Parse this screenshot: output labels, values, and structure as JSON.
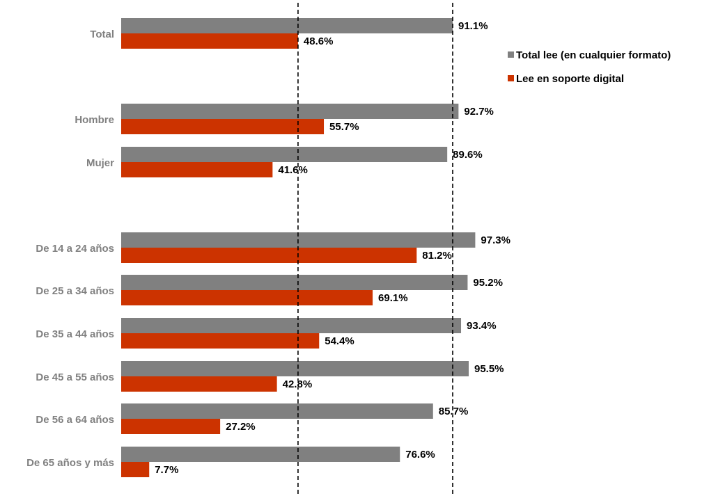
{
  "chart_data": {
    "type": "bar",
    "orientation": "horizontal",
    "categories": [
      "Total",
      "Hombre",
      "Mujer",
      "De 14 a 24 años",
      "De 25 a 34 años",
      "De 35 a 44 años",
      "De 45 a 55 años",
      "De 56 a 64 años",
      "De 65 años y más"
    ],
    "series": [
      {
        "name": "Total lee (en cualquier formato)",
        "color": "#808080",
        "values": [
          91.1,
          92.7,
          89.6,
          97.3,
          95.2,
          93.4,
          95.5,
          85.7,
          76.6
        ],
        "labels": [
          "91.1%",
          "92.7%",
          "89.6%",
          "97.3%",
          "95.2%",
          "93.4%",
          "95.5%",
          "85.7%",
          "76.6%"
        ]
      },
      {
        "name": "Lee en soporte digital",
        "color": "#cc3300",
        "values": [
          48.6,
          55.7,
          41.6,
          81.2,
          69.1,
          54.4,
          42.8,
          27.2,
          7.7
        ],
        "labels": [
          "48.6%",
          "55.7%",
          "41.6%",
          "81.2%",
          "69.1%",
          "54.4%",
          "42.8%",
          "27.2%",
          "7.7%"
        ]
      }
    ],
    "xlim": [
      0,
      100
    ],
    "reference_lines": [
      48.6,
      91.1
    ],
    "legend_position": "top-right",
    "grid": false
  }
}
